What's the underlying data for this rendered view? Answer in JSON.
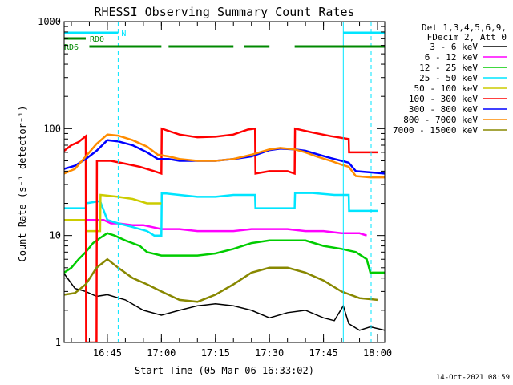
{
  "chart_data": {
    "type": "line",
    "title": "RHESSI Observing Summary Count Rates",
    "xlabel": "Start Time (05-Mar-06 16:33:02)",
    "ylabel": "Count Rate (s⁻¹ detector⁻¹)",
    "ylog": true,
    "ylim": [
      1,
      1000
    ],
    "xlim_minutes_after_1630": [
      3,
      92
    ],
    "x_ticks": [
      {
        "label": "16:45",
        "t": 15
      },
      {
        "label": "17:00",
        "t": 30
      },
      {
        "label": "17:15",
        "t": 45
      },
      {
        "label": "17:30",
        "t": 60
      },
      {
        "label": "17:45",
        "t": 75
      },
      {
        "label": "18:00",
        "t": 90
      }
    ],
    "y_ticks": [
      {
        "label": "1",
        "v": 1
      },
      {
        "label": "10",
        "v": 10
      },
      {
        "label": "100",
        "v": 100
      },
      {
        "label": "1000",
        "v": 1000
      }
    ],
    "legend": {
      "placement": "right",
      "header": [
        "Det 1,3,4,5,6,9,",
        "FDecim 2, Att 0"
      ]
    },
    "flags": [
      {
        "label": "N",
        "color": "#00e5ff",
        "segments": [
          [
            3,
            18
          ],
          [
            80.5,
            95
          ]
        ]
      },
      {
        "label": "RD0",
        "color": "#008800",
        "segments": [
          [
            3,
            9
          ]
        ]
      },
      {
        "label": "RD6",
        "color": "#008800",
        "segments": [
          [
            10,
            30
          ],
          [
            32,
            50
          ],
          [
            53,
            60
          ],
          [
            67,
            95
          ]
        ]
      }
    ],
    "markers": {
      "solid": {
        "color": "#00e5ff",
        "t": [
          3,
          80.5
        ]
      },
      "dashed": {
        "color": "#00e5ff",
        "t": [
          18,
          95
        ]
      }
    },
    "series": [
      {
        "name": "3 - 6 keV",
        "color": "#000000",
        "points": [
          [
            3,
            4.4
          ],
          [
            6,
            3.2
          ],
          [
            9,
            3.0
          ],
          [
            12,
            2.7
          ],
          [
            15,
            2.8
          ],
          [
            20,
            2.5
          ],
          [
            25,
            2.0
          ],
          [
            30,
            1.8
          ],
          [
            35,
            2.0
          ],
          [
            40,
            2.2
          ],
          [
            45,
            2.3
          ],
          [
            50,
            2.2
          ],
          [
            55,
            2.0
          ],
          [
            60,
            1.7
          ],
          [
            65,
            1.9
          ],
          [
            70,
            2.0
          ],
          [
            75,
            1.7
          ],
          [
            78,
            1.6
          ],
          [
            80.5,
            2.2
          ],
          [
            82,
            1.5
          ],
          [
            85,
            1.3
          ],
          [
            88,
            1.4
          ],
          [
            92,
            1.3
          ],
          [
            95,
            1.4
          ]
        ]
      },
      {
        "name": "6 - 12 keV",
        "color": "#ff00ff",
        "points": [
          [
            3,
            14
          ],
          [
            14,
            14
          ],
          [
            16,
            13
          ],
          [
            18,
            13
          ],
          [
            22,
            12.5
          ],
          [
            25,
            12.5
          ],
          [
            30,
            11.5
          ],
          [
            35,
            11.5
          ],
          [
            40,
            11
          ],
          [
            45,
            11
          ],
          [
            50,
            11
          ],
          [
            55,
            11.5
          ],
          [
            60,
            11.5
          ],
          [
            65,
            11.5
          ],
          [
            70,
            11
          ],
          [
            75,
            11
          ],
          [
            80,
            10.5
          ],
          [
            85,
            10.5
          ],
          [
            87,
            10
          ]
        ]
      },
      {
        "name": "12 - 25 keV",
        "color": "#00cc00",
        "points": [
          [
            3,
            4.5
          ],
          [
            5,
            5.0
          ],
          [
            7,
            6.0
          ],
          [
            9,
            7.0
          ],
          [
            11,
            8.5
          ],
          [
            13,
            9.5
          ],
          [
            15,
            10.5
          ],
          [
            17,
            10
          ],
          [
            20,
            9
          ],
          [
            24,
            8
          ],
          [
            26,
            7
          ],
          [
            30,
            6.5
          ],
          [
            35,
            6.5
          ],
          [
            40,
            6.5
          ],
          [
            45,
            6.8
          ],
          [
            50,
            7.5
          ],
          [
            55,
            8.5
          ],
          [
            60,
            9.0
          ],
          [
            65,
            9.0
          ],
          [
            70,
            9
          ],
          [
            75,
            8
          ],
          [
            80,
            7.5
          ],
          [
            84,
            7
          ],
          [
            87,
            6.0
          ],
          [
            88,
            4.5
          ],
          [
            92,
            4.5
          ],
          [
            95,
            4.5
          ]
        ]
      },
      {
        "name": "25 - 50 keV",
        "color": "#00e5ff",
        "points": [
          [
            3,
            18
          ],
          [
            9,
            18
          ],
          [
            9.1,
            20
          ],
          [
            13,
            21
          ],
          [
            15,
            14
          ],
          [
            18,
            13
          ],
          [
            22,
            12
          ],
          [
            26,
            11
          ],
          [
            28,
            10
          ],
          [
            30,
            10
          ],
          [
            30.1,
            25
          ],
          [
            35,
            24
          ],
          [
            40,
            23
          ],
          [
            45,
            23
          ],
          [
            50,
            24
          ],
          [
            56,
            24
          ],
          [
            56.1,
            18
          ],
          [
            60,
            18
          ],
          [
            65,
            18
          ],
          [
            67,
            18
          ],
          [
            67.1,
            25
          ],
          [
            72,
            25
          ],
          [
            78,
            24
          ],
          [
            82,
            24
          ],
          [
            82.1,
            17
          ],
          [
            86,
            17
          ],
          [
            90,
            17
          ],
          [
            95,
            17
          ]
        ]
      },
      {
        "name": "50 - 100 keV",
        "color": "#cccc00",
        "points": [
          [
            3,
            14
          ],
          [
            9,
            14
          ],
          [
            9.1,
            11
          ],
          [
            13,
            11
          ],
          [
            13.1,
            24
          ],
          [
            18,
            23
          ],
          [
            22,
            22
          ],
          [
            26,
            20
          ],
          [
            28,
            20
          ],
          [
            30,
            20
          ]
        ]
      },
      {
        "name": "100 - 300 keV",
        "color": "#ff0000",
        "points": [
          [
            3,
            62
          ],
          [
            5,
            70
          ],
          [
            7,
            75
          ],
          [
            9,
            85
          ],
          [
            9.1,
            1.0
          ],
          [
            10,
            1.0
          ],
          [
            12,
            1.0
          ],
          [
            12.1,
            50
          ],
          [
            16,
            50
          ],
          [
            20,
            47
          ],
          [
            24,
            44
          ],
          [
            28,
            40
          ],
          [
            30,
            38
          ],
          [
            30.1,
            100
          ],
          [
            35,
            88
          ],
          [
            40,
            83
          ],
          [
            45,
            84
          ],
          [
            50,
            88
          ],
          [
            54,
            98
          ],
          [
            56,
            100
          ],
          [
            56.1,
            38
          ],
          [
            60,
            40
          ],
          [
            65,
            40
          ],
          [
            67,
            38
          ],
          [
            67.1,
            100
          ],
          [
            72,
            92
          ],
          [
            77,
            85
          ],
          [
            82,
            80
          ],
          [
            82.1,
            60
          ],
          [
            86,
            60
          ],
          [
            90,
            60
          ],
          [
            95,
            62
          ]
        ]
      },
      {
        "name": "300 - 800 keV",
        "color": "#0000ff",
        "points": [
          [
            3,
            42
          ],
          [
            6,
            45
          ],
          [
            9,
            52
          ],
          [
            12,
            62
          ],
          [
            15,
            78
          ],
          [
            18,
            76
          ],
          [
            22,
            70
          ],
          [
            26,
            60
          ],
          [
            29,
            52
          ],
          [
            32,
            52
          ],
          [
            35,
            50
          ],
          [
            40,
            50
          ],
          [
            45,
            50
          ],
          [
            50,
            52
          ],
          [
            55,
            55
          ],
          [
            60,
            63
          ],
          [
            63,
            65
          ],
          [
            67,
            64
          ],
          [
            70,
            62
          ],
          [
            73,
            58
          ],
          [
            77,
            53
          ],
          [
            80,
            50
          ],
          [
            82,
            48
          ],
          [
            84,
            40
          ],
          [
            88,
            39
          ],
          [
            92,
            38
          ],
          [
            95,
            38
          ]
        ]
      },
      {
        "name": "800 - 7000 keV",
        "color": "#ff8c00",
        "points": [
          [
            3,
            38
          ],
          [
            6,
            42
          ],
          [
            9,
            55
          ],
          [
            12,
            72
          ],
          [
            15,
            88
          ],
          [
            18,
            86
          ],
          [
            22,
            78
          ],
          [
            26,
            68
          ],
          [
            29,
            57
          ],
          [
            32,
            55
          ],
          [
            35,
            52
          ],
          [
            40,
            50
          ],
          [
            45,
            50
          ],
          [
            50,
            52
          ],
          [
            55,
            57
          ],
          [
            60,
            64
          ],
          [
            63,
            66
          ],
          [
            67,
            64
          ],
          [
            70,
            60
          ],
          [
            73,
            55
          ],
          [
            77,
            50
          ],
          [
            80,
            46
          ],
          [
            82,
            44
          ],
          [
            84,
            36
          ],
          [
            88,
            35
          ],
          [
            92,
            35
          ],
          [
            95,
            35
          ]
        ]
      },
      {
        "name": "7000 - 15000 keV",
        "color": "#888800",
        "points": [
          [
            3,
            2.8
          ],
          [
            6,
            2.9
          ],
          [
            9,
            3.5
          ],
          [
            12,
            5.0
          ],
          [
            15,
            6.0
          ],
          [
            18,
            5.0
          ],
          [
            22,
            4.0
          ],
          [
            26,
            3.5
          ],
          [
            30,
            3.0
          ],
          [
            35,
            2.5
          ],
          [
            40,
            2.4
          ],
          [
            45,
            2.8
          ],
          [
            50,
            3.5
          ],
          [
            55,
            4.5
          ],
          [
            60,
            5.0
          ],
          [
            65,
            5.0
          ],
          [
            70,
            4.5
          ],
          [
            75,
            3.8
          ],
          [
            80,
            3.0
          ],
          [
            85,
            2.6
          ],
          [
            90,
            2.5
          ],
          [
            95,
            2.5
          ]
        ]
      }
    ]
  },
  "footer": {
    "timestamp": "14-Oct-2021 08:59"
  }
}
